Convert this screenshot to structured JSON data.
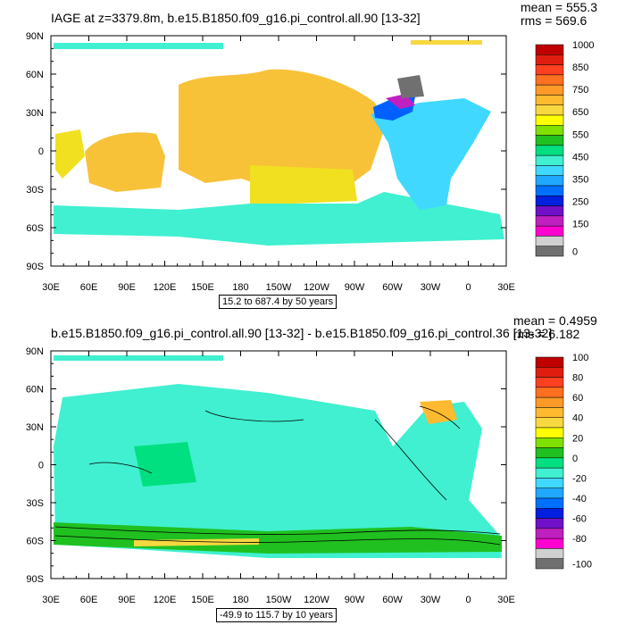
{
  "chart_data": [
    {
      "type": "heatmap",
      "title": "IAGE at z=3379.8m, b.e15.B1850.f09_g16.pi_control.all.90 [13-32]",
      "stats": {
        "mean": "mean = 555.3",
        "rms": "rms = 569.6"
      },
      "subtitle": "15.2 to 687.4 by 50 years",
      "x_ticks": [
        "30E",
        "60E",
        "90E",
        "120E",
        "150E",
        "180",
        "150W",
        "120W",
        "90W",
        "60W",
        "30W",
        "0",
        "30E"
      ],
      "y_ticks": [
        "90N",
        "60N",
        "30N",
        "0",
        "30S",
        "60S",
        "90S"
      ],
      "colorbar": {
        "labels": [
          "1000",
          "850",
          "750",
          "650",
          "550",
          "450",
          "350",
          "250",
          "150",
          "0"
        ],
        "colors": [
          "#c00000",
          "#e01e10",
          "#ff4020",
          "#ff7020",
          "#ff9a28",
          "#ffba30",
          "#f8d840",
          "#ffff00",
          "#80e000",
          "#20c020",
          "#00e080",
          "#40f0d0",
          "#40d8ff",
          "#20a8ff",
          "#0070ff",
          "#0020e0",
          "#7010c8",
          "#c020c0",
          "#ff00d0",
          "#d0d0d0",
          "#707070"
        ]
      },
      "regions": [
        {
          "name": "pacific",
          "value": 650,
          "color": "#f8c238"
        },
        {
          "name": "indian",
          "value": 650,
          "color": "#f8c238"
        },
        {
          "name": "south-pacific-band",
          "value": 600,
          "color": "#f0e020"
        },
        {
          "name": "southern-ocean",
          "value": 450,
          "color": "#40f0d0"
        },
        {
          "name": "atlantic",
          "value": 400,
          "color": "#40d8ff"
        },
        {
          "name": "north-atlantic",
          "value": 250,
          "color": "#0060ff"
        },
        {
          "name": "labrador",
          "value": 150,
          "color": "#c020c0"
        }
      ]
    },
    {
      "type": "heatmap",
      "title": "b.e15.B1850.f09_g16.pi_control.all.90 [13-32] - b.e15.B1850.f09_g16.pi_control.36 [13-32]",
      "stats": {
        "mean": "mean = 0.4959",
        "rms": "rms = 6.182"
      },
      "subtitle": "-49.9 to 115.7 by 10 years",
      "x_ticks": [
        "30E",
        "60E",
        "90E",
        "120E",
        "150E",
        "180",
        "150W",
        "120W",
        "90W",
        "60W",
        "30W",
        "0",
        "30E"
      ],
      "y_ticks": [
        "90N",
        "60N",
        "30N",
        "0",
        "30S",
        "60S",
        "90S"
      ],
      "colorbar": {
        "labels": [
          "100",
          "80",
          "60",
          "40",
          "20",
          "0",
          "-20",
          "-40",
          "-60",
          "-80",
          "-100"
        ],
        "colors": [
          "#c00000",
          "#e01e10",
          "#ff4020",
          "#ff7020",
          "#ff9a28",
          "#ffba30",
          "#f8d840",
          "#ffff00",
          "#80e000",
          "#20c020",
          "#00e080",
          "#40f0d0",
          "#40d8ff",
          "#20a8ff",
          "#0070ff",
          "#0020e0",
          "#7010c8",
          "#c020c0",
          "#ff00d0",
          "#d0d0d0",
          "#707070"
        ]
      },
      "regions": [
        {
          "name": "global-ocean",
          "value": -5,
          "color": "#40f0d0"
        },
        {
          "name": "positive-patches",
          "value": 5,
          "color": "#00e080"
        },
        {
          "name": "southern-ocean-band",
          "value": 10,
          "color": "#20c020"
        },
        {
          "name": "acc-positive",
          "value": 30,
          "color": "#f8d840"
        },
        {
          "name": "north-atlantic-positive",
          "value": 40,
          "color": "#ffba30"
        }
      ]
    }
  ]
}
